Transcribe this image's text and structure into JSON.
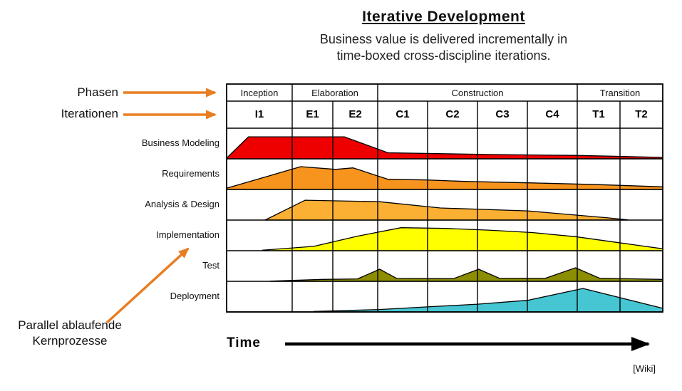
{
  "header": {
    "title": "Iterative Development",
    "subtitle_line1": "Business value is delivered incrementally in",
    "subtitle_line2": "time-boxed cross-discipline iterations."
  },
  "annotations": {
    "phasen_label": "Phasen",
    "iterationen_label": "Iterationen",
    "parallel_label_line1": "Parallel ablaufende",
    "parallel_label_line2": "Kernprozesse",
    "time_label": "Time",
    "credit": "[Wiki]",
    "arrow_color": "#E87E23"
  },
  "chart_data": {
    "type": "area",
    "phases": [
      {
        "label": "Inception",
        "iteration_count": 1
      },
      {
        "label": "Elaboration",
        "iteration_count": 2
      },
      {
        "label": "Construction",
        "iteration_count": 4
      },
      {
        "label": "Transition",
        "iteration_count": 2
      }
    ],
    "iterations": [
      "I1",
      "E1",
      "E2",
      "C1",
      "C2",
      "C3",
      "C4",
      "T1",
      "T2"
    ],
    "disciplines": [
      {
        "label": "Business Modeling",
        "color": "#EE0000",
        "profile": [
          [
            0,
            0.03
          ],
          [
            0.05,
            0.91
          ],
          [
            0.27,
            0.91
          ],
          [
            0.37,
            0.25
          ],
          [
            0.6,
            0.18
          ],
          [
            0.8,
            0.14
          ],
          [
            1,
            0.06
          ]
        ]
      },
      {
        "label": "Requirements",
        "color": "#F7941E",
        "profile": [
          [
            0,
            0.05
          ],
          [
            0.17,
            0.94
          ],
          [
            0.25,
            0.83
          ],
          [
            0.29,
            0.89
          ],
          [
            0.37,
            0.42
          ],
          [
            0.46,
            0.39
          ],
          [
            0.55,
            0.33
          ],
          [
            0.7,
            0.27
          ],
          [
            0.85,
            0.2
          ],
          [
            1,
            0.11
          ]
        ]
      },
      {
        "label": "Analysis & Design",
        "color": "#FBB034",
        "profile": [
          [
            0.088,
            0.0
          ],
          [
            0.18,
            0.82
          ],
          [
            0.35,
            0.76
          ],
          [
            0.49,
            0.5
          ],
          [
            0.69,
            0.38
          ],
          [
            0.87,
            0.1
          ],
          [
            0.92,
            0.01
          ]
        ]
      },
      {
        "label": "Implementation",
        "color": "#FFFF00",
        "profile": [
          [
            0.082,
            0.02
          ],
          [
            0.2,
            0.18
          ],
          [
            0.3,
            0.6
          ],
          [
            0.4,
            0.95
          ],
          [
            0.5,
            0.92
          ],
          [
            0.6,
            0.85
          ],
          [
            0.7,
            0.75
          ],
          [
            0.8,
            0.58
          ],
          [
            0.9,
            0.33
          ],
          [
            1,
            0.08
          ]
        ]
      },
      {
        "label": "Test",
        "color": "#8C8D00",
        "profile": [
          [
            0.1,
            0.01
          ],
          [
            0.22,
            0.08
          ],
          [
            0.3,
            0.1
          ],
          [
            0.351,
            0.5
          ],
          [
            0.39,
            0.12
          ],
          [
            0.52,
            0.11
          ],
          [
            0.578,
            0.5
          ],
          [
            0.625,
            0.13
          ],
          [
            0.73,
            0.12
          ],
          [
            0.8,
            0.56
          ],
          [
            0.855,
            0.13
          ],
          [
            1,
            0.08
          ]
        ]
      },
      {
        "label": "Deployment",
        "color": "#45C6D2",
        "profile": [
          [
            0.2,
            0.02
          ],
          [
            0.35,
            0.1
          ],
          [
            0.46,
            0.21
          ],
          [
            0.575,
            0.32
          ],
          [
            0.69,
            0.48
          ],
          [
            0.817,
            0.97
          ],
          [
            1,
            0.15
          ]
        ]
      }
    ]
  }
}
